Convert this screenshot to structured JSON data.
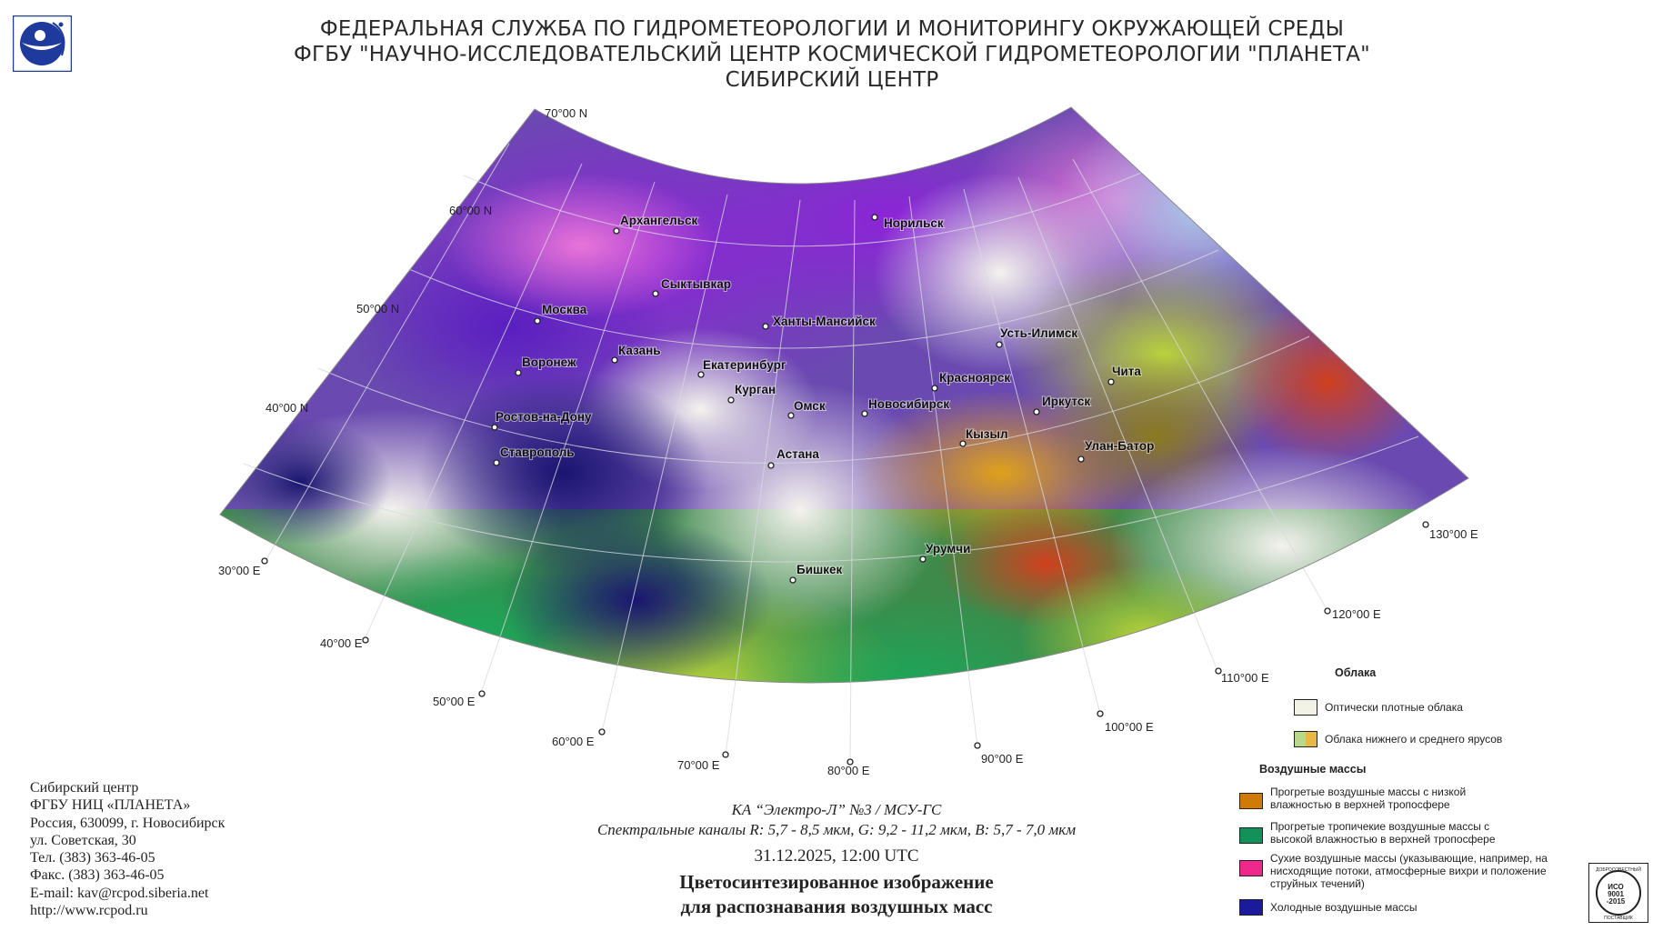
{
  "header": {
    "line1": "ФЕДЕРАЛЬНАЯ СЛУЖБА ПО ГИДРОМЕТЕОРОЛОГИИ И МОНИТОРИНГУ ОКРУЖАЮЩЕЙ СРЕДЫ",
    "line2": "ФГБУ \"НАУЧНО-ИССЛЕДОВАТЕЛЬСКИЙ ЦЕНТР КОСМИЧЕСКОЙ ГИДРОМЕТЕОРОЛОГИИ \"ПЛАНЕТА\"",
    "line3": "СИБИРСКИЙ ЦЕНТР"
  },
  "map": {
    "latitude_labels": [
      "70°00 N",
      "60°00 N",
      "50°00 N",
      "40°00 N"
    ],
    "longitude_labels": [
      "30°00 E",
      "40°00 E",
      "50°00 E",
      "60°00 E",
      "70°00 E",
      "80°00 E",
      "90°00 E",
      "100°00 E",
      "110°00 E",
      "120°00 E",
      "130°00 E"
    ],
    "cities": [
      "Архангельск",
      "Норильск",
      "Сыктывкар",
      "Москва",
      "Ханты-Мансийск",
      "Усть-Илимск",
      "Казань",
      "Воронеж",
      "Екатеринбург",
      "Красноярск",
      "Чита",
      "Курган",
      "Омск",
      "Новосибирск",
      "Иркутск",
      "Ростов-на-Дону",
      "Кызыл",
      "Улан-Батор",
      "Ставрополь",
      "Астана",
      "Урумчи",
      "Бишкек"
    ]
  },
  "org": {
    "line1": "Сибирский центр",
    "line2": "ФГБУ НИЦ «ПЛАНЕТА»",
    "line3": "Россия, 630099, г. Новосибирск",
    "line4": "ул. Советская, 30",
    "line5": "Тел. (383) 363-46-05",
    "line6": "Факс. (383) 363-46-05",
    "line7": "E-mail: kav@rcpod.siberia.net",
    "line8": "http://www.rcpod.ru"
  },
  "caption": {
    "satellite": "КА “Электро-Л” №3 / МСУ-ГС",
    "channels": "Спектральные каналы R: 5,7 - 8,5 мкм, G: 9,2 - 11,2 мкм, B: 5,7 - 7,0 мкм",
    "datetime": "31.12.2025, 12:00 UTC",
    "title1": "Цветосинтезированное изображение",
    "title2": "для распознавания воздушных масс"
  },
  "legend": {
    "clouds_title": "Облака",
    "dense_clouds": "Оптически плотные облака",
    "low_mid_clouds": "Облака нижнего и среднего ярусов",
    "air_masses_title": "Воздушные массы",
    "warm_low_humidity": "Прогретые воздушные массы с низкой влажностью в верхней тропосфере",
    "warm_tropical": "Прогретые тропичекие воздушные массы с высокой влажностью в верхней тропосфере",
    "dry_masses": "Сухие воздушные массы (указывающие, например, на нисходящие потоки, атмосферные вихри и положение струйных течений)",
    "cold_masses": "Холодные воздушные массы",
    "colors": {
      "dense_clouds": "#f2f2e6",
      "low_mid_a": "#b8d98a",
      "low_mid_b": "#e8b846",
      "warm_low_humidity": "#d07a08",
      "warm_tropical": "#12925a",
      "dry_masses": "#f0288c",
      "cold_masses": "#1a1a9a"
    }
  },
  "badge": {
    "top": "ДОБРОСОВЕСТНЫЙ",
    "iso": "ИСО",
    "num": "9001",
    "year": "-2015",
    "bottom": "ПОСТАВЩИК"
  }
}
